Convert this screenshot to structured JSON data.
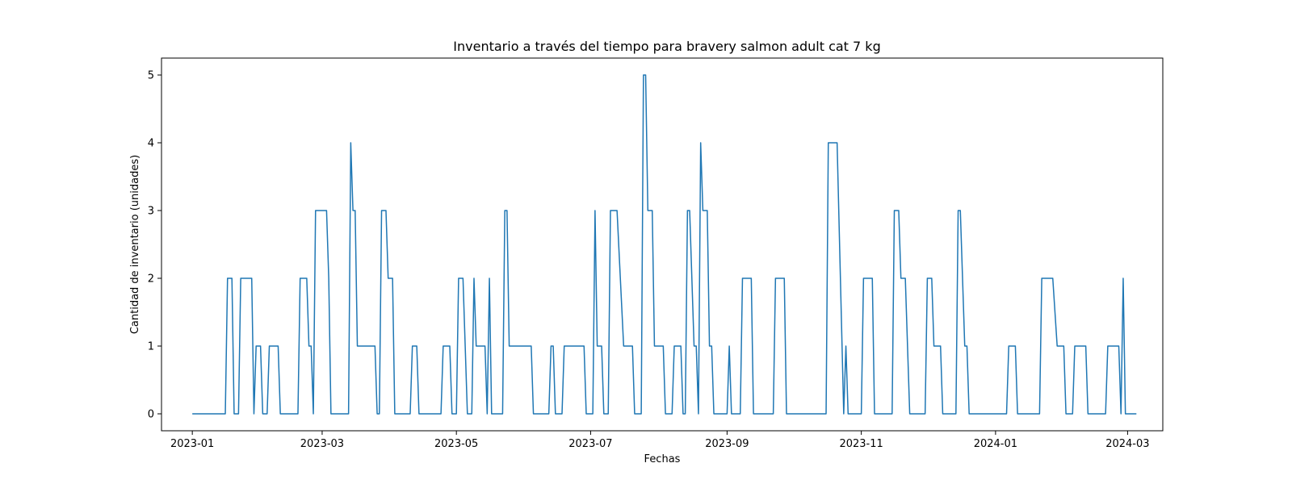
{
  "chart_data": {
    "type": "line",
    "title": "Inventario a través del tiempo para bravery salmon adult cat 7 kg",
    "xlabel": "Fechas",
    "ylabel": "Cantidad de inventario (unidades)",
    "xlim": [
      "2022-12-18",
      "2024-03-17"
    ],
    "ylim": [
      -0.25,
      5.25
    ],
    "grid": false,
    "x_ticks": [
      "2023-01",
      "2023-03",
      "2023-05",
      "2023-07",
      "2023-09",
      "2023-11",
      "2024-01",
      "2024-03"
    ],
    "x_tick_dates": [
      "2023-01-01",
      "2023-03-01",
      "2023-05-01",
      "2023-07-01",
      "2023-09-01",
      "2023-11-01",
      "2024-01-01",
      "2024-03-01"
    ],
    "y_ticks": [
      0,
      1,
      2,
      3,
      4,
      5
    ],
    "line_color": "#1f77b4",
    "series": [
      {
        "points": [
          [
            "2023-01-01",
            0
          ],
          [
            "2023-01-16",
            0
          ],
          [
            "2023-01-17",
            2
          ],
          [
            "2023-01-19",
            2
          ],
          [
            "2023-01-20",
            0
          ],
          [
            "2023-01-22",
            0
          ],
          [
            "2023-01-23",
            2
          ],
          [
            "2023-01-28",
            2
          ],
          [
            "2023-01-29",
            0
          ],
          [
            "2023-01-30",
            1
          ],
          [
            "2023-02-01",
            1
          ],
          [
            "2023-02-02",
            0
          ],
          [
            "2023-02-04",
            0
          ],
          [
            "2023-02-05",
            1
          ],
          [
            "2023-02-09",
            1
          ],
          [
            "2023-02-10",
            0
          ],
          [
            "2023-02-18",
            0
          ],
          [
            "2023-02-19",
            2
          ],
          [
            "2023-02-22",
            2
          ],
          [
            "2023-02-23",
            1
          ],
          [
            "2023-02-24",
            1
          ],
          [
            "2023-02-25",
            0
          ],
          [
            "2023-02-26",
            3
          ],
          [
            "2023-03-03",
            3
          ],
          [
            "2023-03-04",
            2
          ],
          [
            "2023-03-05",
            0
          ],
          [
            "2023-03-13",
            0
          ],
          [
            "2023-03-14",
            4
          ],
          [
            "2023-03-15",
            3
          ],
          [
            "2023-03-16",
            3
          ],
          [
            "2023-03-17",
            1
          ],
          [
            "2023-03-25",
            1
          ],
          [
            "2023-03-26",
            0
          ],
          [
            "2023-03-27",
            0
          ],
          [
            "2023-03-28",
            3
          ],
          [
            "2023-03-30",
            3
          ],
          [
            "2023-03-31",
            2
          ],
          [
            "2023-04-02",
            2
          ],
          [
            "2023-04-03",
            0
          ],
          [
            "2023-04-10",
            0
          ],
          [
            "2023-04-11",
            1
          ],
          [
            "2023-04-13",
            1
          ],
          [
            "2023-04-14",
            0
          ],
          [
            "2023-04-24",
            0
          ],
          [
            "2023-04-25",
            1
          ],
          [
            "2023-04-28",
            1
          ],
          [
            "2023-04-29",
            0
          ],
          [
            "2023-05-01",
            0
          ],
          [
            "2023-05-02",
            2
          ],
          [
            "2023-05-04",
            2
          ],
          [
            "2023-05-05",
            1
          ],
          [
            "2023-05-06",
            0
          ],
          [
            "2023-05-08",
            0
          ],
          [
            "2023-05-09",
            2
          ],
          [
            "2023-05-10",
            1
          ],
          [
            "2023-05-14",
            1
          ],
          [
            "2023-05-15",
            0
          ],
          [
            "2023-05-16",
            2
          ],
          [
            "2023-05-17",
            0
          ],
          [
            "2023-05-22",
            0
          ],
          [
            "2023-05-23",
            3
          ],
          [
            "2023-05-24",
            3
          ],
          [
            "2023-05-25",
            1
          ],
          [
            "2023-06-04",
            1
          ],
          [
            "2023-06-05",
            0
          ],
          [
            "2023-06-12",
            0
          ],
          [
            "2023-06-13",
            1
          ],
          [
            "2023-06-14",
            1
          ],
          [
            "2023-06-15",
            0
          ],
          [
            "2023-06-18",
            0
          ],
          [
            "2023-06-19",
            1
          ],
          [
            "2023-06-28",
            1
          ],
          [
            "2023-06-29",
            0
          ],
          [
            "2023-07-02",
            0
          ],
          [
            "2023-07-03",
            3
          ],
          [
            "2023-07-04",
            1
          ],
          [
            "2023-07-06",
            1
          ],
          [
            "2023-07-07",
            0
          ],
          [
            "2023-07-09",
            0
          ],
          [
            "2023-07-10",
            3
          ],
          [
            "2023-07-13",
            3
          ],
          [
            "2023-07-16",
            1
          ],
          [
            "2023-07-20",
            1
          ],
          [
            "2023-07-21",
            0
          ],
          [
            "2023-07-24",
            0
          ],
          [
            "2023-07-25",
            5
          ],
          [
            "2023-07-26",
            5
          ],
          [
            "2023-07-27",
            3
          ],
          [
            "2023-07-29",
            3
          ],
          [
            "2023-07-30",
            1
          ],
          [
            "2023-08-03",
            1
          ],
          [
            "2023-08-04",
            0
          ],
          [
            "2023-08-07",
            0
          ],
          [
            "2023-08-08",
            1
          ],
          [
            "2023-08-11",
            1
          ],
          [
            "2023-08-12",
            0
          ],
          [
            "2023-08-13",
            0
          ],
          [
            "2023-08-14",
            3
          ],
          [
            "2023-08-15",
            3
          ],
          [
            "2023-08-17",
            1
          ],
          [
            "2023-08-18",
            1
          ],
          [
            "2023-08-19",
            0
          ],
          [
            "2023-08-20",
            4
          ],
          [
            "2023-08-21",
            3
          ],
          [
            "2023-08-23",
            3
          ],
          [
            "2023-08-24",
            1
          ],
          [
            "2023-08-25",
            1
          ],
          [
            "2023-08-26",
            0
          ],
          [
            "2023-09-01",
            0
          ],
          [
            "2023-09-02",
            1
          ],
          [
            "2023-09-03",
            0
          ],
          [
            "2023-09-07",
            0
          ],
          [
            "2023-09-08",
            2
          ],
          [
            "2023-09-12",
            2
          ],
          [
            "2023-09-13",
            0
          ],
          [
            "2023-09-22",
            0
          ],
          [
            "2023-09-23",
            2
          ],
          [
            "2023-09-27",
            2
          ],
          [
            "2023-09-28",
            0
          ],
          [
            "2023-10-16",
            0
          ],
          [
            "2023-10-17",
            4
          ],
          [
            "2023-10-21",
            4
          ],
          [
            "2023-10-24",
            0
          ],
          [
            "2023-10-25",
            1
          ],
          [
            "2023-10-26",
            0
          ],
          [
            "2023-11-01",
            0
          ],
          [
            "2023-11-02",
            2
          ],
          [
            "2023-11-06",
            2
          ],
          [
            "2023-11-07",
            0
          ],
          [
            "2023-11-15",
            0
          ],
          [
            "2023-11-16",
            3
          ],
          [
            "2023-11-18",
            3
          ],
          [
            "2023-11-19",
            2
          ],
          [
            "2023-11-21",
            2
          ],
          [
            "2023-11-23",
            0
          ],
          [
            "2023-11-30",
            0
          ],
          [
            "2023-12-01",
            2
          ],
          [
            "2023-12-03",
            2
          ],
          [
            "2023-12-04",
            1
          ],
          [
            "2023-12-07",
            1
          ],
          [
            "2023-12-08",
            0
          ],
          [
            "2023-12-14",
            0
          ],
          [
            "2023-12-15",
            3
          ],
          [
            "2023-12-16",
            3
          ],
          [
            "2023-12-18",
            1
          ],
          [
            "2023-12-19",
            1
          ],
          [
            "2023-12-20",
            0
          ],
          [
            "2024-01-06",
            0
          ],
          [
            "2024-01-07",
            1
          ],
          [
            "2024-01-10",
            1
          ],
          [
            "2024-01-11",
            0
          ],
          [
            "2024-01-21",
            0
          ],
          [
            "2024-01-22",
            2
          ],
          [
            "2024-01-27",
            2
          ],
          [
            "2024-01-29",
            1
          ],
          [
            "2024-02-01",
            1
          ],
          [
            "2024-02-02",
            0
          ],
          [
            "2024-02-05",
            0
          ],
          [
            "2024-02-06",
            1
          ],
          [
            "2024-02-11",
            1
          ],
          [
            "2024-02-12",
            0
          ],
          [
            "2024-02-20",
            0
          ],
          [
            "2024-02-21",
            1
          ],
          [
            "2024-02-26",
            1
          ],
          [
            "2024-02-27",
            0
          ],
          [
            "2024-02-28",
            2
          ],
          [
            "2024-02-29",
            0
          ],
          [
            "2024-03-05",
            0
          ]
        ]
      }
    ]
  }
}
